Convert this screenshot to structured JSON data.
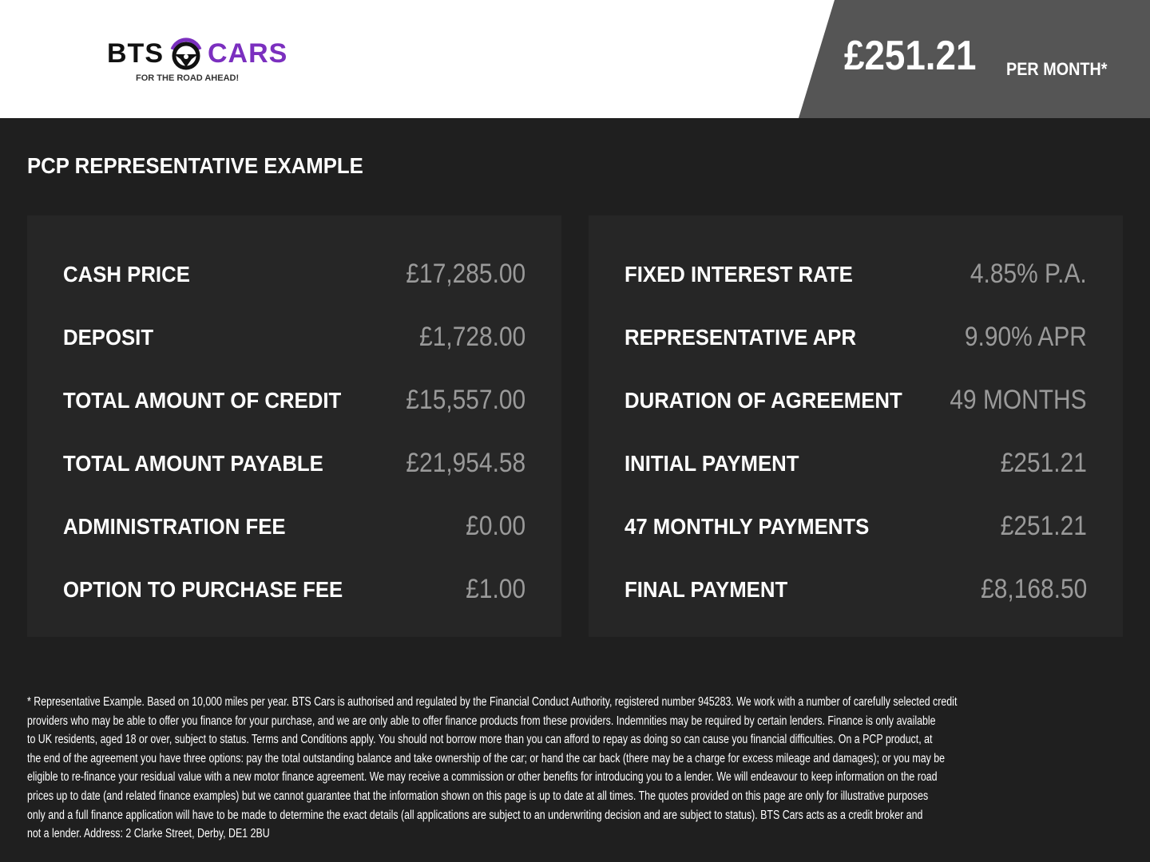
{
  "header": {
    "logo": {
      "brand_left": "BTS",
      "brand_right": "CARS",
      "tagline": "FOR THE ROAD AHEAD!"
    },
    "price": "£251.21",
    "price_suffix": "PER MONTH*"
  },
  "section_title": "PCP REPRESENTATIVE EXAMPLE",
  "left_panel": [
    {
      "label": "CASH PRICE",
      "value": "£17,285.00"
    },
    {
      "label": "DEPOSIT",
      "value": "£1,728.00"
    },
    {
      "label": "TOTAL AMOUNT OF CREDIT",
      "value": "£15,557.00"
    },
    {
      "label": "TOTAL AMOUNT PAYABLE",
      "value": "£21,954.58"
    },
    {
      "label": "ADMINISTRATION FEE",
      "value": "£0.00"
    },
    {
      "label": "OPTION TO PURCHASE FEE",
      "value": "£1.00"
    }
  ],
  "right_panel": [
    {
      "label": "FIXED INTEREST RATE",
      "value": "4.85% P.A."
    },
    {
      "label": "REPRESENTATIVE APR",
      "value": "9.90% APR"
    },
    {
      "label": "DURATION OF AGREEMENT",
      "value": "49 MONTHS"
    },
    {
      "label": "INITIAL PAYMENT",
      "value": "£251.21"
    },
    {
      "label": "47 MONTHLY PAYMENTS",
      "value": "£251.21"
    },
    {
      "label": "FINAL PAYMENT",
      "value": "£8,168.50"
    }
  ],
  "disclaimer_lines": [
    "* Representative Example. Based on 10,000 miles per year. BTS Cars is authorised and regulated by the Financial Conduct Authority, registered number 945283. We work with a number of carefully selected credit",
    "providers who may be able to offer you finance for your purchase, and we are only able to offer finance products from these providers. Indemnities may be required by certain lenders. Finance is only available",
    "to UK residents, aged 18 or over, subject to status. Terms and Conditions apply. You should not borrow more than you can afford to repay as doing so can cause you financial difficulties. On a PCP product, at",
    "the end of the agreement you have three options: pay the total outstanding balance and take ownership of the car; or hand the car back (there may be a charge for excess mileage and damages); or you may be",
    "eligible to re-finance your residual value with a new motor finance agreement. We may receive a commission or other benefits for introducing you to a lender. We will endeavour to keep information on the road",
    "prices up to date (and related finance examples) but we cannot guarantee that the information shown on this page is up to date at all times. The quotes provided on this page are only for illustrative purposes",
    "only and a full finance application will have to be made to determine the exact details (all applications are subject to an underwriting decision and are subject to status). BTS Cars acts as a credit broker and",
    "not a lender. Address: 2 Clarke Street, Derby, DE1 2BU"
  ],
  "colors": {
    "accent": "#7b2fbf",
    "background": "#1f1f1f",
    "panel": "#262626",
    "price_box": "#555555",
    "value_text": "#9a9a9a"
  }
}
